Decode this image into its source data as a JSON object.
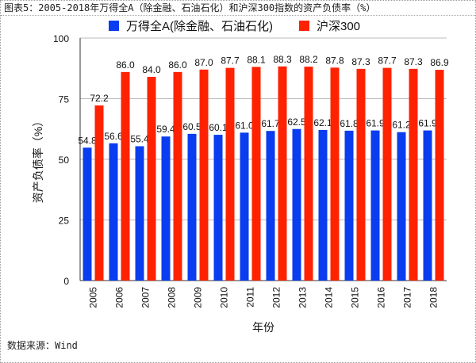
{
  "title": "图表5：2005-2018年万得全A（除金融、石油石化）和沪深300指数的资产负债率（%）",
  "source": "数据来源：Wind",
  "chart_data": {
    "type": "bar",
    "title": "图表5：2005-2018年万得全A（除金融、石油石化）和沪深300指数的资产负债率（%）",
    "xlabel": "年份",
    "ylabel": "资产负债率（%）",
    "ylim": [
      0,
      100
    ],
    "yticks": [
      "0",
      "25",
      "50",
      "75",
      "100"
    ],
    "grid": true,
    "legend_position": "top-center",
    "categories": [
      "2005",
      "2006",
      "2007",
      "2008",
      "2009",
      "2010",
      "2011",
      "2012",
      "2013",
      "2014",
      "2015",
      "2016",
      "2017",
      "2018"
    ],
    "series": [
      {
        "name": "万得全A(除金融、石油石化)",
        "color": "#0a3cf0",
        "values": [
          54.8,
          56.6,
          55.4,
          59.4,
          60.5,
          60.1,
          61.0,
          61.7,
          62.5,
          62.1,
          61.8,
          61.9,
          61.2,
          61.9
        ],
        "labels": [
          "54.8",
          "56.6",
          "55.4",
          "59.4",
          "60.5",
          "60.1",
          "61.0",
          "61.7",
          "62.5",
          "62.1",
          "61.8",
          "61.9",
          "61.2",
          "61.9"
        ]
      },
      {
        "name": "沪深300",
        "color": "#ff2200",
        "values": [
          72.2,
          86.0,
          84.0,
          86.0,
          87.0,
          87.7,
          88.1,
          88.3,
          88.2,
          87.8,
          87.3,
          87.7,
          87.3,
          86.9
        ],
        "labels": [
          "72.2",
          "86.0",
          "84.0",
          "86.0",
          "87.0",
          "87.7",
          "88.1",
          "88.3",
          "88.2",
          "87.8",
          "87.3",
          "87.7",
          "87.3",
          "86.9"
        ]
      }
    ]
  }
}
